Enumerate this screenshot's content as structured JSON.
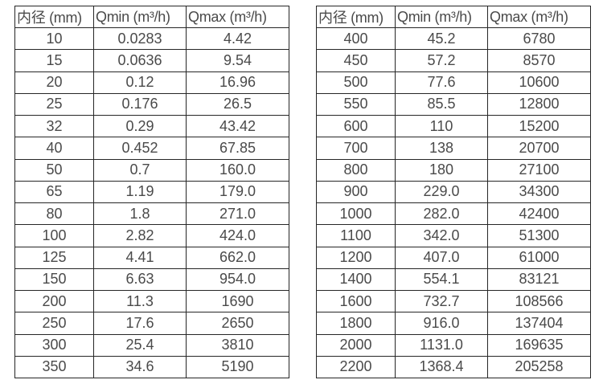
{
  "page": {
    "background_color": "#ffffff",
    "border_color": "#262626",
    "text_color": "#4a4a4a"
  },
  "tables": [
    {
      "name": "flow-rate-table-small-diameters",
      "headers": [
        "内径 (mm)",
        "Qmin (m³/h)",
        "Qmax (m³/h)"
      ],
      "rows": [
        [
          "10",
          "0.0283",
          "4.42"
        ],
        [
          "15",
          "0.0636",
          "9.54"
        ],
        [
          "20",
          "0.12",
          "16.96"
        ],
        [
          "25",
          "0.176",
          "26.5"
        ],
        [
          "32",
          "0.29",
          "43.42"
        ],
        [
          "40",
          "0.452",
          "67.85"
        ],
        [
          "50",
          "0.7",
          "160.0"
        ],
        [
          "65",
          "1.19",
          "179.0"
        ],
        [
          "80",
          "1.8",
          "271.0"
        ],
        [
          "100",
          "2.82",
          "424.0"
        ],
        [
          "125",
          "4.41",
          "662.0"
        ],
        [
          "150",
          "6.63",
          "954.0"
        ],
        [
          "200",
          "11.3",
          "1690"
        ],
        [
          "250",
          "17.6",
          "2650"
        ],
        [
          "300",
          "25.4",
          "3810"
        ],
        [
          "350",
          "34.6",
          "5190"
        ]
      ]
    },
    {
      "name": "flow-rate-table-large-diameters",
      "headers": [
        "内径 (mm)",
        "Qmin (m³/h)",
        "Qmax (m³/h)"
      ],
      "rows": [
        [
          "400",
          "45.2",
          "6780"
        ],
        [
          "450",
          "57.2",
          "8570"
        ],
        [
          "500",
          "77.6",
          "10600"
        ],
        [
          "550",
          "85.5",
          "12800"
        ],
        [
          "600",
          "110",
          "15200"
        ],
        [
          "700",
          "138",
          "20700"
        ],
        [
          "800",
          "180",
          "27100"
        ],
        [
          "900",
          "229.0",
          "34300"
        ],
        [
          "1000",
          "282.0",
          "42400"
        ],
        [
          "1100",
          "342.0",
          "51300"
        ],
        [
          "1200",
          "407.0",
          "61000"
        ],
        [
          "1400",
          "554.1",
          "83121"
        ],
        [
          "1600",
          "732.7",
          "108566"
        ],
        [
          "1800",
          "916.0",
          "137404"
        ],
        [
          "2000",
          "1131.0",
          "169635"
        ],
        [
          "2200",
          "1368.4",
          "205258"
        ]
      ]
    }
  ]
}
